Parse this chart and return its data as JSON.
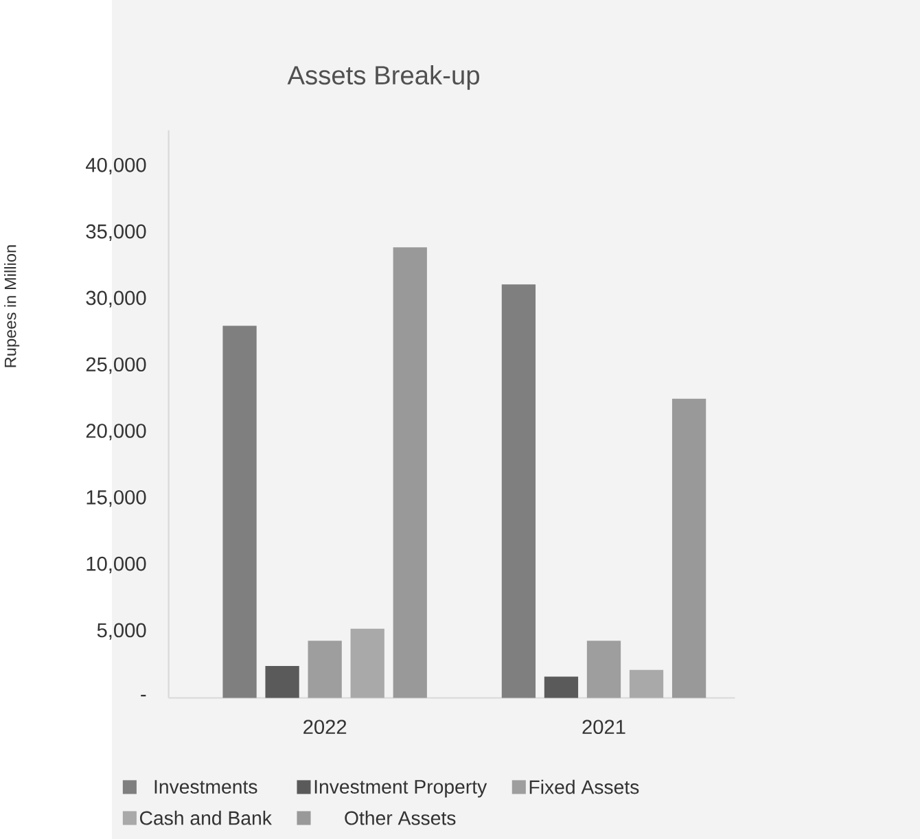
{
  "chart_data": {
    "type": "bar",
    "title": "Assets Break-up",
    "ylabel": "Rupees in Million",
    "categories": [
      "2022",
      "2021"
    ],
    "series": [
      {
        "name": "Investments",
        "color": "#7f7f7f",
        "values": [
          28000,
          31100
        ]
      },
      {
        "name": "Investment Property",
        "color": "#5a5a5a",
        "values": [
          2400,
          1600
        ]
      },
      {
        "name": "Fixed Assets",
        "color": "#9e9e9e",
        "values": [
          4300,
          4300
        ]
      },
      {
        "name": "Cash and Bank",
        "color": "#a9a9a9",
        "values": [
          5200,
          2100
        ]
      },
      {
        "name": "Other Assets",
        "color": "#999999",
        "values": [
          33900,
          22500
        ]
      }
    ],
    "ylim": [
      0,
      42700
    ],
    "yticks": [
      {
        "value": 0,
        "label": "-"
      },
      {
        "value": 5000,
        "label": "5,000"
      },
      {
        "value": 10000,
        "label": "10,000"
      },
      {
        "value": 15000,
        "label": "15,000"
      },
      {
        "value": 20000,
        "label": "20,000"
      },
      {
        "value": 25000,
        "label": "25,000"
      },
      {
        "value": 30000,
        "label": "30,000"
      },
      {
        "value": 35000,
        "label": "35,000"
      },
      {
        "value": 40000,
        "label": "40,000"
      }
    ],
    "grid": false,
    "legend": "bottom"
  }
}
